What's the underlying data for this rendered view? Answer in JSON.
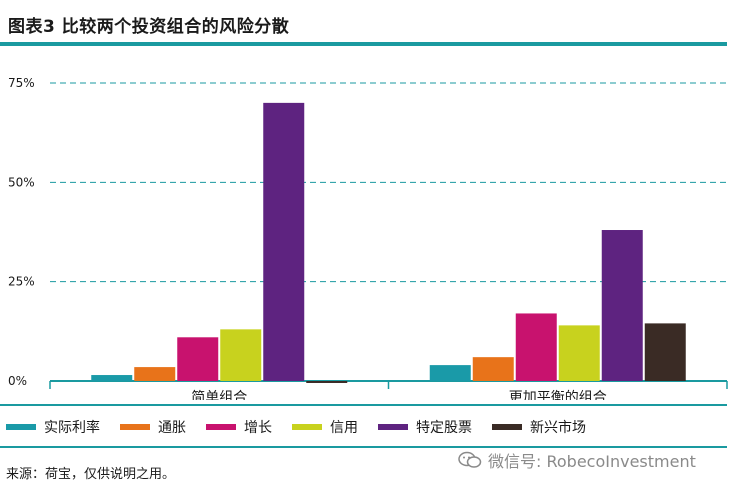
{
  "title": "图表3 比较两个投资组合的风险分散",
  "source": "来源：荷宝，仅供说明之用。",
  "watermark": {
    "icon": "wechat-icon",
    "text": "微信号: RobecoInvestment"
  },
  "chart_data": {
    "type": "bar",
    "title": "",
    "xlabel": "",
    "ylabel": "",
    "ylim": [
      0,
      75
    ],
    "yticks": [
      0,
      25,
      50,
      75
    ],
    "ytick_labels": [
      "0%",
      "25%",
      "50%",
      "75%"
    ],
    "grid": true,
    "legend_position": "bottom",
    "categories": [
      "简单组合",
      "更加平衡的组合"
    ],
    "series": [
      {
        "name": "实际利率",
        "color": "#1a9aa8",
        "values": [
          1.5,
          4
        ]
      },
      {
        "name": "通胀",
        "color": "#e8731a",
        "values": [
          3.5,
          6
        ]
      },
      {
        "name": "增长",
        "color": "#c8126e",
        "values": [
          11,
          17
        ]
      },
      {
        "name": "信用",
        "color": "#c8d21e",
        "values": [
          13,
          14
        ]
      },
      {
        "name": "特定股票",
        "color": "#5e2380",
        "values": [
          70,
          38
        ]
      },
      {
        "name": "新兴市场",
        "color": "#3a2b25",
        "values": [
          -0.5,
          14.5
        ]
      }
    ]
  }
}
